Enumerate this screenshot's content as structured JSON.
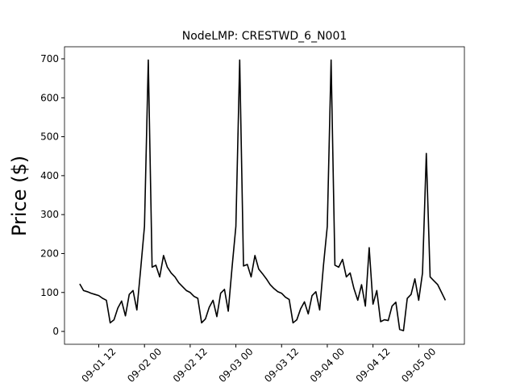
{
  "chart_data": {
    "type": "line",
    "title": "NodeLMP: CRESTWD_6_N001",
    "y_label": "Price ($)",
    "color": "#000000",
    "x": [
      "09-01 07",
      "09-01 08",
      "09-01 09",
      "09-01 10",
      "09-01 11",
      "09-01 12",
      "09-01 13",
      "09-01 14",
      "09-01 15",
      "09-01 16",
      "09-01 17",
      "09-01 18",
      "09-01 19",
      "09-01 20",
      "09-01 21",
      "09-01 22",
      "09-01 23",
      "09-02 00",
      "09-02 01",
      "09-02 02",
      "09-02 03",
      "09-02 04",
      "09-02 05",
      "09-02 06",
      "09-02 07",
      "09-02 08",
      "09-02 09",
      "09-02 10",
      "09-02 11",
      "09-02 12",
      "09-02 13",
      "09-02 14",
      "09-02 15",
      "09-02 16",
      "09-02 17",
      "09-02 18",
      "09-02 19",
      "09-02 20",
      "09-02 21",
      "09-02 22",
      "09-02 23",
      "09-03 00",
      "09-03 01",
      "09-03 02",
      "09-03 03",
      "09-03 04",
      "09-03 05",
      "09-03 06",
      "09-03 07",
      "09-03 08",
      "09-03 09",
      "09-03 10",
      "09-03 11",
      "09-03 12",
      "09-03 13",
      "09-03 14",
      "09-03 15",
      "09-03 16",
      "09-03 17",
      "09-03 18",
      "09-03 19",
      "09-03 20",
      "09-03 21",
      "09-03 22",
      "09-03 23",
      "09-04 00",
      "09-04 01",
      "09-04 02",
      "09-04 03",
      "09-04 04",
      "09-04 05",
      "09-04 06",
      "09-04 07",
      "09-04 08",
      "09-04 09",
      "09-04 10",
      "09-04 11",
      "09-04 12",
      "09-04 13",
      "09-04 14",
      "09-04 15",
      "09-04 16",
      "09-04 17",
      "09-04 18",
      "09-04 19",
      "09-04 20",
      "09-04 21",
      "09-04 22",
      "09-04 23",
      "09-05 00",
      "09-05 01",
      "09-05 02",
      "09-05 03",
      "09-05 04",
      "09-05 05",
      "09-05 06",
      "09-05 07"
    ],
    "values": [
      122,
      105,
      102,
      98,
      95,
      92,
      85,
      80,
      22,
      30,
      60,
      78,
      40,
      95,
      105,
      55,
      160,
      270,
      697,
      165,
      170,
      140,
      195,
      165,
      150,
      140,
      125,
      115,
      105,
      100,
      90,
      85,
      22,
      32,
      62,
      80,
      38,
      98,
      108,
      52,
      165,
      270,
      697,
      168,
      172,
      140,
      195,
      160,
      148,
      135,
      120,
      110,
      102,
      98,
      88,
      82,
      22,
      30,
      58,
      76,
      45,
      92,
      102,
      55,
      170,
      270,
      697,
      170,
      165,
      185,
      140,
      150,
      110,
      80,
      120,
      65,
      215,
      70,
      105,
      25,
      30,
      28,
      65,
      75,
      5,
      2,
      85,
      95,
      135,
      80,
      150,
      457,
      140,
      130,
      120,
      100,
      80
    ],
    "xlim": [
      "09-01 03",
      "09-05 12"
    ],
    "xticks": [
      "09-01 12",
      "09-02 00",
      "09-02 12",
      "09-03 00",
      "09-03 12",
      "09-04 00",
      "09-04 12",
      "09-05 00"
    ],
    "ylim": [
      -33,
      731
    ],
    "yticks": [
      0,
      100,
      200,
      300,
      400,
      500,
      600,
      700
    ]
  }
}
